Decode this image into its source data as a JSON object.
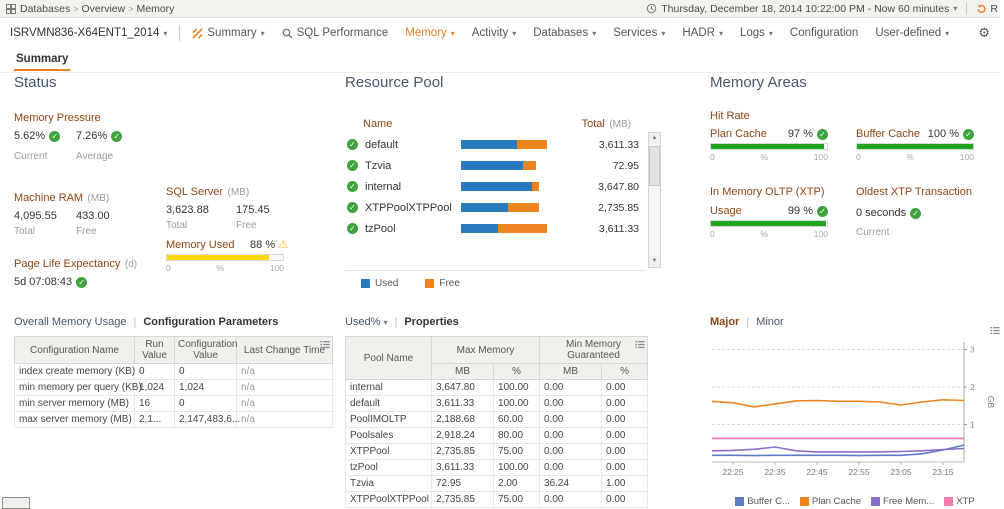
{
  "colors": {
    "accent": "#ee7f22",
    "used": "#2a7ac0",
    "free": "#ee8322",
    "meter_green": "#1fa51f",
    "meter_yellow": "#ffd90f",
    "ok_green": "#3ea23e"
  },
  "topbar": {
    "breadcrumb": [
      "Databases",
      "Overview",
      "Memory"
    ],
    "time_range": "Thursday, December 18, 2014 10:22:00 PM - Now 60 minutes",
    "refresh_label": "R"
  },
  "navbar": {
    "server": "ISRVMN836-X64ENT1_2014",
    "items": [
      {
        "label": "Summary",
        "dropdown": true,
        "icon": "jump"
      },
      {
        "label": "SQL Performance",
        "dropdown": false,
        "icon": "magnifier"
      },
      {
        "label": "Memory",
        "dropdown": true,
        "active": true
      },
      {
        "label": "Activity",
        "dropdown": true
      },
      {
        "label": "Databases",
        "dropdown": true
      },
      {
        "label": "Services",
        "dropdown": true
      },
      {
        "label": "HADR",
        "dropdown": true
      },
      {
        "label": "Logs",
        "dropdown": true
      },
      {
        "label": "Configuration",
        "dropdown": false
      },
      {
        "label": "User-defined",
        "dropdown": true
      }
    ]
  },
  "tab": {
    "label": "Summary"
  },
  "status": {
    "title": "Status",
    "memory_pressure": {
      "title": "Memory Pressure",
      "current": {
        "value": "5.62%",
        "label": "Current"
      },
      "average": {
        "value": "7.26%",
        "label": "Average"
      }
    },
    "machine_ram": {
      "title": "Machine RAM",
      "unit": "(MB)",
      "total": "4,095.55",
      "free": "433.00",
      "total_label": "Total",
      "free_label": "Free"
    },
    "sql_server": {
      "title": "SQL Server",
      "unit": "(MB)",
      "total": "3,623.88",
      "free": "175.45",
      "total_label": "Total",
      "free_label": "Free"
    },
    "memory_used": {
      "title": "Memory Used",
      "display": "88 %",
      "pct": 88,
      "scale": {
        "min": "0",
        "mid": "%",
        "max": "100"
      }
    },
    "page_life": {
      "title": "Page Life Expectancy",
      "unit": "(d)",
      "value": "5d 07:08:43"
    },
    "views": {
      "link": "Overall Memory Usage",
      "separator": "|",
      "active": "Configuration Parameters"
    },
    "config_table": {
      "columns": [
        "Configuration Name",
        "Run Value",
        "Configuration Value",
        "Last Change Time"
      ],
      "rows": [
        [
          "index create memory (KB)",
          "0",
          "0",
          "n/a"
        ],
        [
          "min memory per query (KB)",
          "1,024",
          "1,024",
          "n/a"
        ],
        [
          "min server memory (MB)",
          "16",
          "0",
          "n/a"
        ],
        [
          "max server memory (MB)",
          "2,1...",
          "2,147,483,6...",
          "n/a"
        ]
      ]
    }
  },
  "resource_pool": {
    "title": "Resource Pool",
    "name_header": "Name",
    "total_header": "Total",
    "total_unit": "(MB)",
    "pools": [
      {
        "name": "default",
        "used_pct": 50,
        "free_pct": 27,
        "total": "3,611.33"
      },
      {
        "name": "Tzvia",
        "used_pct": 55,
        "free_pct": 12,
        "total": "72.95"
      },
      {
        "name": "internal",
        "used_pct": 63,
        "free_pct": 7,
        "total": "3,647.80"
      },
      {
        "name": "XTPPoolXTPPool",
        "used_pct": 42,
        "free_pct": 28,
        "total": "2,735.85"
      },
      {
        "name": "tzPool",
        "used_pct": 33,
        "free_pct": 44,
        "total": "3,611.33"
      }
    ],
    "legend": {
      "used": "Used",
      "free": "Free"
    },
    "views": {
      "sort": "Used%",
      "separator": "|",
      "active": "Properties"
    },
    "pool_table": {
      "col_pool": "Pool Name",
      "group_max": "Max Memory",
      "group_min": "Min Memory Guaranteed",
      "sub_mb": "MB",
      "sub_pct": "%",
      "rows": [
        [
          "internal",
          "3,647.80",
          "100.00",
          "0.00",
          "0.00"
        ],
        [
          "default",
          "3,611.33",
          "100.00",
          "0.00",
          "0.00"
        ],
        [
          "PoolIMOLTP",
          "2,188.68",
          "60.00",
          "0.00",
          "0.00"
        ],
        [
          "Poolsales",
          "2,918.24",
          "80.00",
          "0.00",
          "0.00"
        ],
        [
          "XTPPool",
          "2,735.85",
          "75.00",
          "0.00",
          "0.00"
        ],
        [
          "tzPool",
          "3,611.33",
          "100.00",
          "0.00",
          "0.00"
        ],
        [
          "Tzvia",
          "72.95",
          "2.00",
          "36.24",
          "1.00"
        ],
        [
          "XTPPoolXTPPool",
          "2,735.85",
          "75.00",
          "0.00",
          "0.00"
        ]
      ]
    }
  },
  "memory_areas": {
    "title": "Memory Areas",
    "hit_rate": {
      "title": "Hit Rate",
      "plan_cache": {
        "label": "Plan Cache",
        "display": "97 %",
        "pct": 97
      },
      "buffer_cache": {
        "label": "Buffer Cache",
        "display": "100 %",
        "pct": 100
      }
    },
    "xtp": {
      "title": "In Memory OLTP (XTP)",
      "usage_label": "Usage",
      "display": "99 %",
      "pct": 99
    },
    "oldest_xtp": {
      "title": "Oldest XTP Transaction",
      "value": "0 seconds",
      "label": "Current"
    },
    "scale": {
      "min": "0",
      "mid": "%",
      "max": "100"
    },
    "views": {
      "active": "Major",
      "separator": "|",
      "link": "Minor"
    }
  },
  "chart_data": {
    "type": "line",
    "title": "",
    "xlabel": "",
    "ylabel": "GB",
    "x_labels": [
      "22:25",
      "22:35",
      "22:45",
      "22:55",
      "23:05",
      "23:15"
    ],
    "x_tick_indices": [
      1,
      3,
      5,
      7,
      9,
      11
    ],
    "y_ticks": [
      1,
      2,
      3
    ],
    "ylim": [
      0,
      3.2
    ],
    "grid": "dashed-horizontal",
    "legend_position": "bottom",
    "series": [
      {
        "name": "Buffer C...",
        "color": "#5b7bc7",
        "values": [
          0.18,
          0.18,
          0.17,
          0.18,
          0.18,
          0.18,
          0.18,
          0.17,
          0.18,
          0.18,
          0.22,
          0.32,
          0.45
        ]
      },
      {
        "name": "Plan Cache",
        "color": "#ef8522",
        "values": [
          1.62,
          1.58,
          1.47,
          1.55,
          1.63,
          1.64,
          1.62,
          1.62,
          1.6,
          1.52,
          1.6,
          1.66,
          1.64
        ]
      },
      {
        "name": "Free Mem...",
        "color": "#8a6fc8",
        "values": [
          0.3,
          0.31,
          0.34,
          0.4,
          0.3,
          0.27,
          0.27,
          0.27,
          0.27,
          0.28,
          0.3,
          0.33,
          0.36
        ]
      },
      {
        "name": "XTP",
        "color": "#f47ab0",
        "values": [
          0.63,
          0.63,
          0.63,
          0.63,
          0.63,
          0.63,
          0.63,
          0.63,
          0.63,
          0.63,
          0.63,
          0.63,
          0.63
        ]
      }
    ]
  }
}
